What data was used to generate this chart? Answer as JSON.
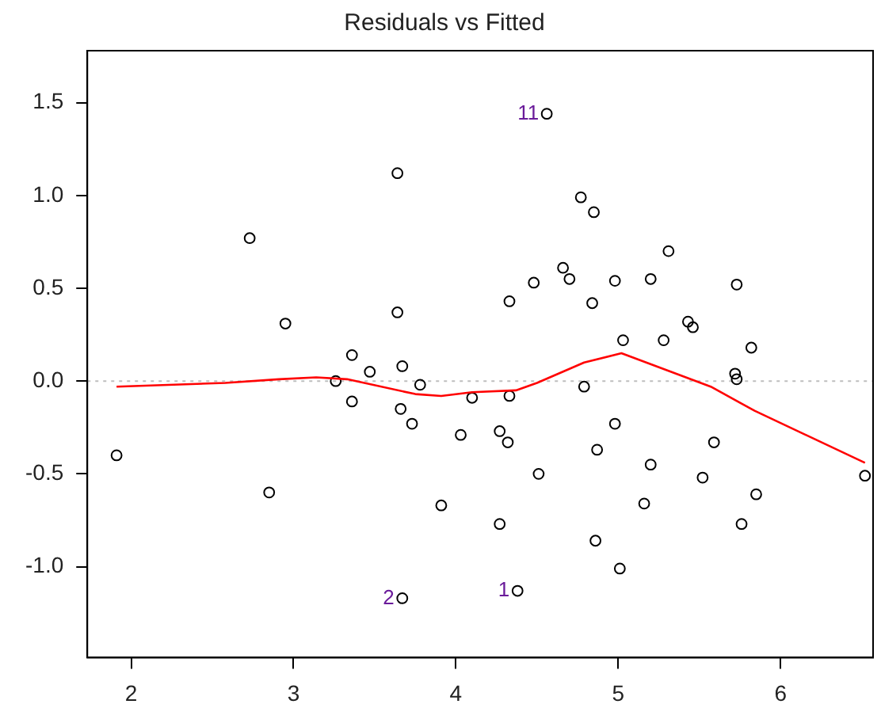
{
  "chart_data": {
    "type": "scatter",
    "title": "Residuals vs Fitted",
    "xlim": [
      1.73,
      6.57
    ],
    "ylim": [
      -1.49,
      1.78
    ],
    "xticks": [
      2,
      3,
      4,
      5,
      6
    ],
    "yticks": [
      {
        "value": -1,
        "label": "-1.0"
      },
      {
        "value": -0.5,
        "label": "-0.5"
      },
      {
        "value": 0,
        "label": "0.0"
      },
      {
        "value": 0.5,
        "label": "0.5"
      },
      {
        "value": 1,
        "label": "1.0"
      },
      {
        "value": 1.5,
        "label": "1.5"
      }
    ],
    "grid": false,
    "legend": false,
    "marker": "circle",
    "series": [
      {
        "color": "#000000",
        "x": [
          1.91,
          2.73,
          2.85,
          2.95,
          3.64,
          3.64,
          3.36,
          3.67,
          3.26,
          3.36,
          3.47,
          3.66,
          3.73,
          3.78,
          3.67,
          3.91,
          4.03,
          4.1,
          4.27,
          4.32,
          4.33,
          4.27,
          4.38,
          4.51,
          4.79,
          4.87,
          4.86,
          4.98,
          5.01,
          5.16,
          5.2,
          5.52,
          5.59,
          5.76,
          5.85,
          6.52,
          5.72,
          5.73,
          5.82,
          4.56,
          4.77,
          4.85,
          5.31,
          4.66,
          4.7,
          4.48,
          4.98,
          5.2,
          5.73,
          4.33,
          4.84,
          5.43,
          5.46,
          5.03,
          5.28
        ],
        "values": [
          -0.4,
          0.77,
          -0.6,
          0.31,
          1.12,
          0.37,
          0.14,
          0.08,
          0.0,
          -0.11,
          0.05,
          -0.15,
          -0.23,
          -0.02,
          -1.17,
          -0.67,
          -0.29,
          -0.09,
          -0.27,
          -0.33,
          -0.08,
          -0.77,
          -1.13,
          -0.5,
          -0.03,
          -0.37,
          -0.86,
          -0.23,
          -1.01,
          -0.66,
          -0.45,
          -0.52,
          -0.33,
          -0.77,
          -0.61,
          -0.51,
          0.04,
          0.01,
          0.18,
          1.44,
          0.99,
          0.91,
          0.7,
          0.61,
          0.55,
          0.53,
          0.54,
          0.55,
          0.52,
          0.43,
          0.42,
          0.32,
          0.29,
          0.22,
          0.22
        ]
      },
      {
        "type": "line",
        "color": "#ff0000",
        "marker": "none",
        "line_style": "solid",
        "x": [
          1.91,
          2.58,
          2.91,
          3.14,
          3.33,
          3.75,
          3.91,
          4.1,
          4.37,
          4.5,
          4.79,
          5.02,
          5.57,
          5.84,
          6.52
        ],
        "values": [
          -0.03,
          -0.01,
          0.01,
          0.02,
          0.01,
          -0.07,
          -0.08,
          -0.06,
          -0.05,
          -0.01,
          0.1,
          0.15,
          -0.03,
          -0.16,
          -0.44
        ]
      }
    ],
    "ref_lines": [
      {
        "axis": "y",
        "value": 0,
        "color": "#bebebe",
        "line_style": "dotted"
      }
    ],
    "annotations": [
      {
        "text": "11",
        "x": 4.56,
        "y": 1.44
      },
      {
        "text": "2",
        "x": 3.67,
        "y": -1.17
      },
      {
        "text": "1",
        "x": 4.38,
        "y": -1.13
      }
    ]
  }
}
